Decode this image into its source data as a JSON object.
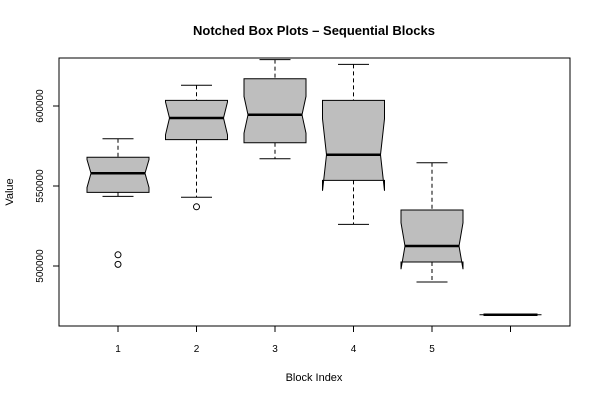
{
  "chart_data": {
    "type": "boxplot",
    "title": "Notched Box Plots – Sequential Blocks",
    "xlabel": "Block Index",
    "ylabel": "Value",
    "ylim": [
      462500,
      630000
    ],
    "y_ticks": [
      500000,
      550000,
      600000
    ],
    "y_tick_labels": [
      "500000",
      "550000",
      "600000"
    ],
    "categories": [
      "1",
      "2",
      "3",
      "4",
      "5",
      ""
    ],
    "box_color": "#bebebe",
    "boxes": [
      {
        "label": "1",
        "whisker_low": 543500,
        "q1": 546000,
        "median": 558000,
        "q3": 568000,
        "whisker_high": 579500,
        "notch_low": 549000,
        "notch_high": 566500,
        "outliers": [
          501000,
          507000
        ]
      },
      {
        "label": "2",
        "whisker_low": 543000,
        "q1": 579000,
        "median": 592500,
        "q3": 603500,
        "whisker_high": 613000,
        "notch_low": 582000,
        "notch_high": 602500,
        "outliers": [
          537000
        ]
      },
      {
        "label": "3",
        "whisker_low": 567000,
        "q1": 577000,
        "median": 594500,
        "q3": 617000,
        "whisker_high": 629000,
        "notch_low": 583000,
        "notch_high": 606000,
        "outliers": []
      },
      {
        "label": "4",
        "whisker_low": 526000,
        "q1": 553500,
        "median": 569500,
        "q3": 603500,
        "whisker_high": 626000,
        "notch_low": 547000,
        "notch_high": 592000,
        "outliers": []
      },
      {
        "label": "5",
        "whisker_low": 490000,
        "q1": 502500,
        "median": 512500,
        "q3": 535000,
        "whisker_high": 564500,
        "notch_low": 498000,
        "notch_high": 527000,
        "outliers": []
      },
      {
        "label": "",
        "whisker_low": 469500,
        "q1": 469500,
        "median": 469500,
        "q3": 469500,
        "whisker_high": 469500,
        "notch_low": 469500,
        "notch_high": 469500,
        "outliers": []
      }
    ]
  }
}
